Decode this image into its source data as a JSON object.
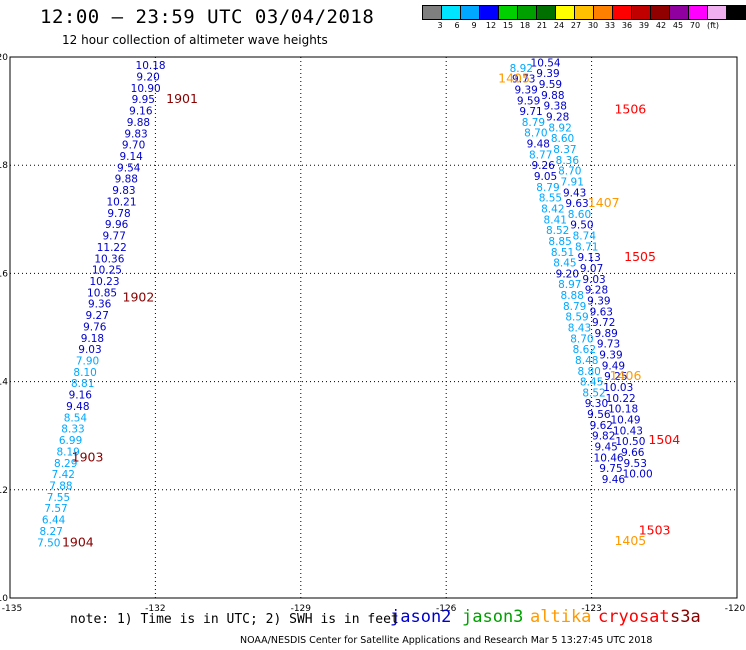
{
  "title": "12:00 – 23:59 UTC 03/04/2018",
  "subtitle": "12 hour collection of altimeter wave heights",
  "colorbar": {
    "unit": "(ft)",
    "levels": [
      "3",
      "6",
      "9",
      "12",
      "15",
      "18",
      "21",
      "24",
      "27",
      "30",
      "33",
      "36",
      "39",
      "42",
      "45",
      "70"
    ],
    "colors": [
      "#7f7f7f",
      "#00e5ff",
      "#00a8ff",
      "#0000ff",
      "#00d000",
      "#00a000",
      "#007000",
      "#ffff00",
      "#ffc000",
      "#ff8000",
      "#ff0000",
      "#c00000",
      "#900000",
      "#9000a0",
      "#ff00ff",
      "#f0b0f0",
      "#000000"
    ]
  },
  "note": "note: 1) Time is in UTC; 2) SWH is in feet",
  "satellites": [
    {
      "name": "jason2",
      "color": "#0000cc"
    },
    {
      "name": "jason3",
      "color": "#00a000"
    },
    {
      "name": "altika",
      "color": "#ff9900"
    },
    {
      "name": "cryosat",
      "color": "#ff0000"
    },
    {
      "name": "s3a",
      "color": "#880000"
    }
  ],
  "footer": "NOAA/NESDIS Center for Satellite Applications and Research   Mar  5 13:27:45 UTC 2018",
  "chart_data": {
    "type": "scatter",
    "title": "12 hour collection of altimeter wave heights",
    "x_ticks": [
      "-135",
      "-132",
      "-129",
      "-126",
      "-123",
      "-120"
    ],
    "y_ticks": [
      "20",
      "18",
      "16",
      "14",
      "12",
      "10"
    ],
    "xlim": [
      -135,
      -120
    ],
    "ylim": [
      10,
      20
    ],
    "grid": true,
    "track_west": [
      {
        "lon": -132.1,
        "lat": 19.85,
        "v": "10.18",
        "c": "#0000cc"
      },
      {
        "lon": -132.15,
        "lat": 19.64,
        "v": "9.20",
        "c": "#0000cc"
      },
      {
        "lon": -132.2,
        "lat": 19.43,
        "v": "10.90",
        "c": "#0000cc"
      },
      {
        "lon": -132.25,
        "lat": 19.22,
        "v": "9.95",
        "c": "#0000cc"
      },
      {
        "lon": -132.3,
        "lat": 19.01,
        "v": "9.16",
        "c": "#0000cc"
      },
      {
        "lon": -132.35,
        "lat": 18.8,
        "v": "9.88",
        "c": "#0000cc"
      },
      {
        "lon": -132.4,
        "lat": 18.59,
        "v": "9.83",
        "c": "#0000cc"
      },
      {
        "lon": -132.45,
        "lat": 18.38,
        "v": "9.70",
        "c": "#0000cc"
      },
      {
        "lon": -132.5,
        "lat": 18.17,
        "v": "9.14",
        "c": "#0000cc"
      },
      {
        "lon": -132.55,
        "lat": 17.96,
        "v": "9.54",
        "c": "#0000cc"
      },
      {
        "lon": -132.6,
        "lat": 17.75,
        "v": "9.88",
        "c": "#0000cc"
      },
      {
        "lon": -132.65,
        "lat": 17.54,
        "v": "9.83",
        "c": "#0000cc"
      },
      {
        "lon": -132.7,
        "lat": 17.33,
        "v": "10.21",
        "c": "#0000cc"
      },
      {
        "lon": -132.75,
        "lat": 17.12,
        "v": "9.78",
        "c": "#0000cc"
      },
      {
        "lon": -132.8,
        "lat": 16.91,
        "v": "9.96",
        "c": "#0000cc"
      },
      {
        "lon": -132.85,
        "lat": 16.7,
        "v": "9.77",
        "c": "#0000cc"
      },
      {
        "lon": -132.9,
        "lat": 16.49,
        "v": "11.22",
        "c": "#0000cc"
      },
      {
        "lon": -132.95,
        "lat": 16.28,
        "v": "10.36",
        "c": "#0000cc"
      },
      {
        "lon": -133.0,
        "lat": 16.07,
        "v": "10.25",
        "c": "#0000cc"
      },
      {
        "lon": -133.05,
        "lat": 15.86,
        "v": "10.23",
        "c": "#0000cc"
      },
      {
        "lon": -133.1,
        "lat": 15.65,
        "v": "10.85",
        "c": "#0000cc"
      },
      {
        "lon": -133.15,
        "lat": 15.44,
        "v": "9.36",
        "c": "#0000cc"
      },
      {
        "lon": -133.2,
        "lat": 15.23,
        "v": "9.27",
        "c": "#0000cc"
      },
      {
        "lon": -133.25,
        "lat": 15.02,
        "v": "9.76",
        "c": "#0000cc"
      },
      {
        "lon": -133.3,
        "lat": 14.81,
        "v": "9.18",
        "c": "#0000cc"
      },
      {
        "lon": -133.35,
        "lat": 14.6,
        "v": "9.03",
        "c": "#0000cc"
      },
      {
        "lon": -133.4,
        "lat": 14.39,
        "v": "7.90",
        "c": "#00a8ff"
      },
      {
        "lon": -133.45,
        "lat": 14.18,
        "v": "8.10",
        "c": "#00a8ff"
      },
      {
        "lon": -133.5,
        "lat": 13.97,
        "v": "8.81",
        "c": "#00a8ff"
      },
      {
        "lon": -133.55,
        "lat": 13.76,
        "v": "9.16",
        "c": "#0000cc"
      },
      {
        "lon": -133.6,
        "lat": 13.55,
        "v": "9.48",
        "c": "#0000cc"
      },
      {
        "lon": -133.65,
        "lat": 13.34,
        "v": "8.54",
        "c": "#00a8ff"
      },
      {
        "lon": -133.7,
        "lat": 13.13,
        "v": "8.33",
        "c": "#00a8ff"
      },
      {
        "lon": -133.75,
        "lat": 12.92,
        "v": "6.99",
        "c": "#00a8ff"
      },
      {
        "lon": -133.8,
        "lat": 12.71,
        "v": "8.19",
        "c": "#00a8ff"
      },
      {
        "lon": -133.85,
        "lat": 12.5,
        "v": "8.29",
        "c": "#00a8ff"
      },
      {
        "lon": -133.9,
        "lat": 12.29,
        "v": "7.42",
        "c": "#00a8ff"
      },
      {
        "lon": -133.95,
        "lat": 12.08,
        "v": "7.88",
        "c": "#00a8ff"
      },
      {
        "lon": -134.0,
        "lat": 11.87,
        "v": "7.55",
        "c": "#00a8ff"
      },
      {
        "lon": -134.05,
        "lat": 11.66,
        "v": "7.57",
        "c": "#00a8ff"
      },
      {
        "lon": -134.1,
        "lat": 11.45,
        "v": "6.44",
        "c": "#00a8ff"
      },
      {
        "lon": -134.15,
        "lat": 11.24,
        "v": "8.27",
        "c": "#00a8ff"
      },
      {
        "lon": -134.2,
        "lat": 11.03,
        "v": "7.50",
        "c": "#00a8ff"
      }
    ],
    "track_east": [
      {
        "lon": -123.95,
        "lat": 19.9,
        "v": "10.54",
        "c": "#0000cc"
      },
      {
        "lon": -124.45,
        "lat": 19.8,
        "v": "8.92",
        "c": "#00a8ff"
      },
      {
        "lon": -123.9,
        "lat": 19.7,
        "v": "9.39",
        "c": "#0000cc"
      },
      {
        "lon": -124.4,
        "lat": 19.6,
        "v": "9.73",
        "c": "#0000cc"
      },
      {
        "lon": -123.85,
        "lat": 19.5,
        "v": "9.59",
        "c": "#0000cc"
      },
      {
        "lon": -124.35,
        "lat": 19.4,
        "v": "9.39",
        "c": "#0000cc"
      },
      {
        "lon": -123.8,
        "lat": 19.3,
        "v": "9.88",
        "c": "#0000cc"
      },
      {
        "lon": -124.3,
        "lat": 19.2,
        "v": "9.59",
        "c": "#0000cc"
      },
      {
        "lon": -123.75,
        "lat": 19.1,
        "v": "9.38",
        "c": "#0000cc"
      },
      {
        "lon": -124.25,
        "lat": 19.0,
        "v": "9.71",
        "c": "#0000cc"
      },
      {
        "lon": -123.7,
        "lat": 18.9,
        "v": "9.28",
        "c": "#0000cc"
      },
      {
        "lon": -124.2,
        "lat": 18.8,
        "v": "8.79",
        "c": "#00a8ff"
      },
      {
        "lon": -123.65,
        "lat": 18.7,
        "v": "8.92",
        "c": "#00a8ff"
      },
      {
        "lon": -124.15,
        "lat": 18.6,
        "v": "8.70",
        "c": "#00a8ff"
      },
      {
        "lon": -123.6,
        "lat": 18.5,
        "v": "8.60",
        "c": "#00a8ff"
      },
      {
        "lon": -124.1,
        "lat": 18.4,
        "v": "9.48",
        "c": "#0000cc"
      },
      {
        "lon": -123.55,
        "lat": 18.3,
        "v": "8.37",
        "c": "#00a8ff"
      },
      {
        "lon": -124.05,
        "lat": 18.2,
        "v": "8.77",
        "c": "#00a8ff"
      },
      {
        "lon": -123.5,
        "lat": 18.1,
        "v": "8.36",
        "c": "#00a8ff"
      },
      {
        "lon": -124.0,
        "lat": 18.0,
        "v": "9.26",
        "c": "#0000cc"
      },
      {
        "lon": -123.45,
        "lat": 17.9,
        "v": "8.70",
        "c": "#00a8ff"
      },
      {
        "lon": -123.95,
        "lat": 17.8,
        "v": "9.05",
        "c": "#0000cc"
      },
      {
        "lon": -123.4,
        "lat": 17.7,
        "v": "7.91",
        "c": "#00a8ff"
      },
      {
        "lon": -123.9,
        "lat": 17.6,
        "v": "8.79",
        "c": "#00a8ff"
      },
      {
        "lon": -123.35,
        "lat": 17.5,
        "v": "9.43",
        "c": "#0000cc"
      },
      {
        "lon": -123.85,
        "lat": 17.4,
        "v": "8.55",
        "c": "#00a8ff"
      },
      {
        "lon": -123.3,
        "lat": 17.3,
        "v": "9.63",
        "c": "#0000cc"
      },
      {
        "lon": -123.8,
        "lat": 17.2,
        "v": "8.42",
        "c": "#00a8ff"
      },
      {
        "lon": -123.25,
        "lat": 17.1,
        "v": "8.60",
        "c": "#00a8ff"
      },
      {
        "lon": -123.75,
        "lat": 17.0,
        "v": "8.41",
        "c": "#00a8ff"
      },
      {
        "lon": -123.2,
        "lat": 16.9,
        "v": "9.50",
        "c": "#0000cc"
      },
      {
        "lon": -123.7,
        "lat": 16.8,
        "v": "8.52",
        "c": "#00a8ff"
      },
      {
        "lon": -123.15,
        "lat": 16.7,
        "v": "8.74",
        "c": "#00a8ff"
      },
      {
        "lon": -123.65,
        "lat": 16.6,
        "v": "8.85",
        "c": "#00a8ff"
      },
      {
        "lon": -123.1,
        "lat": 16.5,
        "v": "8.71",
        "c": "#00a8ff"
      },
      {
        "lon": -123.6,
        "lat": 16.4,
        "v": "8.51",
        "c": "#00a8ff"
      },
      {
        "lon": -123.05,
        "lat": 16.3,
        "v": "9.13",
        "c": "#0000cc"
      },
      {
        "lon": -123.55,
        "lat": 16.2,
        "v": "8.45",
        "c": "#00a8ff"
      },
      {
        "lon": -123.0,
        "lat": 16.1,
        "v": "9.07",
        "c": "#0000cc"
      },
      {
        "lon": -123.5,
        "lat": 16.0,
        "v": "9.20",
        "c": "#0000cc"
      },
      {
        "lon": -122.95,
        "lat": 15.9,
        "v": "9.03",
        "c": "#0000cc"
      },
      {
        "lon": -123.45,
        "lat": 15.8,
        "v": "8.97",
        "c": "#00a8ff"
      },
      {
        "lon": -122.9,
        "lat": 15.7,
        "v": "9.28",
        "c": "#0000cc"
      },
      {
        "lon": -123.4,
        "lat": 15.6,
        "v": "8.88",
        "c": "#00a8ff"
      },
      {
        "lon": -122.85,
        "lat": 15.5,
        "v": "9.39",
        "c": "#0000cc"
      },
      {
        "lon": -123.35,
        "lat": 15.4,
        "v": "8.79",
        "c": "#00a8ff"
      },
      {
        "lon": -122.8,
        "lat": 15.3,
        "v": "9.63",
        "c": "#0000cc"
      },
      {
        "lon": -123.3,
        "lat": 15.2,
        "v": "8.59",
        "c": "#00a8ff"
      },
      {
        "lon": -122.75,
        "lat": 15.1,
        "v": "9.72",
        "c": "#0000cc"
      },
      {
        "lon": -123.25,
        "lat": 15.0,
        "v": "8.43",
        "c": "#00a8ff"
      },
      {
        "lon": -122.7,
        "lat": 14.9,
        "v": "9.89",
        "c": "#0000cc"
      },
      {
        "lon": -123.2,
        "lat": 14.8,
        "v": "8.70",
        "c": "#00a8ff"
      },
      {
        "lon": -122.65,
        "lat": 14.7,
        "v": "9.73",
        "c": "#0000cc"
      },
      {
        "lon": -123.15,
        "lat": 14.6,
        "v": "8.62",
        "c": "#00a8ff"
      },
      {
        "lon": -122.6,
        "lat": 14.5,
        "v": "9.39",
        "c": "#0000cc"
      },
      {
        "lon": -123.1,
        "lat": 14.4,
        "v": "8.48",
        "c": "#00a8ff"
      },
      {
        "lon": -122.55,
        "lat": 14.3,
        "v": "9.49",
        "c": "#0000cc"
      },
      {
        "lon": -123.05,
        "lat": 14.2,
        "v": "8.80",
        "c": "#00a8ff"
      },
      {
        "lon": -122.5,
        "lat": 14.1,
        "v": "9.25",
        "c": "#0000cc"
      },
      {
        "lon": -123.0,
        "lat": 14.0,
        "v": "8.45",
        "c": "#00a8ff"
      },
      {
        "lon": -122.45,
        "lat": 13.9,
        "v": "10.03",
        "c": "#0000cc"
      },
      {
        "lon": -122.95,
        "lat": 13.8,
        "v": "8.52",
        "c": "#00a8ff"
      },
      {
        "lon": -122.4,
        "lat": 13.7,
        "v": "10.22",
        "c": "#0000cc"
      },
      {
        "lon": -122.9,
        "lat": 13.6,
        "v": "9.30",
        "c": "#0000cc"
      },
      {
        "lon": -122.35,
        "lat": 13.5,
        "v": "10.18",
        "c": "#0000cc"
      },
      {
        "lon": -122.85,
        "lat": 13.4,
        "v": "9.56",
        "c": "#0000cc"
      },
      {
        "lon": -122.3,
        "lat": 13.3,
        "v": "10.49",
        "c": "#0000cc"
      },
      {
        "lon": -122.8,
        "lat": 13.2,
        "v": "9.62",
        "c": "#0000cc"
      },
      {
        "lon": -122.25,
        "lat": 13.1,
        "v": "10.43",
        "c": "#0000cc"
      },
      {
        "lon": -122.75,
        "lat": 13.0,
        "v": "9.82",
        "c": "#0000cc"
      },
      {
        "lon": -122.2,
        "lat": 12.9,
        "v": "10.50",
        "c": "#0000cc"
      },
      {
        "lon": -122.7,
        "lat": 12.8,
        "v": "9.45",
        "c": "#0000cc"
      },
      {
        "lon": -122.15,
        "lat": 12.7,
        "v": "9.66",
        "c": "#0000cc"
      },
      {
        "lon": -122.65,
        "lat": 12.6,
        "v": "10.46",
        "c": "#0000cc"
      },
      {
        "lon": -122.1,
        "lat": 12.5,
        "v": "9.53",
        "c": "#0000cc"
      },
      {
        "lon": -122.6,
        "lat": 12.4,
        "v": "9.75",
        "c": "#0000cc"
      },
      {
        "lon": -122.05,
        "lat": 12.3,
        "v": "10.00",
        "c": "#0000cc"
      },
      {
        "lon": -122.55,
        "lat": 12.2,
        "v": "9.46",
        "c": "#0000cc"
      }
    ],
    "time_labels": [
      {
        "lon": -131.45,
        "lat": 19.22,
        "t": "1901",
        "c": "#880000"
      },
      {
        "lon": -132.35,
        "lat": 15.55,
        "t": "1902",
        "c": "#880000"
      },
      {
        "lon": -133.4,
        "lat": 12.6,
        "t": "1903",
        "c": "#880000"
      },
      {
        "lon": -133.6,
        "lat": 11.03,
        "t": "1904",
        "c": "#880000"
      },
      {
        "lon": -124.6,
        "lat": 19.6,
        "t": "1405",
        "c": "#ff9900"
      },
      {
        "lon": -122.75,
        "lat": 17.3,
        "t": "1407",
        "c": "#ff9900"
      },
      {
        "lon": -122.3,
        "lat": 14.1,
        "t": "1406",
        "c": "#ff9900"
      },
      {
        "lon": -122.2,
        "lat": 11.05,
        "t": "1405",
        "c": "#ff9900"
      },
      {
        "lon": -122.2,
        "lat": 19.03,
        "t": "1506",
        "c": "#ff0000"
      },
      {
        "lon": -122.0,
        "lat": 16.3,
        "t": "1505",
        "c": "#ff0000"
      },
      {
        "lon": -121.5,
        "lat": 12.92,
        "t": "1504",
        "c": "#ff0000"
      },
      {
        "lon": -121.7,
        "lat": 11.25,
        "t": "1503",
        "c": "#ff0000"
      }
    ]
  }
}
